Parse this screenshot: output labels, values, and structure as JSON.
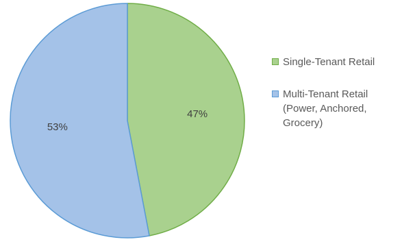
{
  "chart_data": {
    "type": "pie",
    "title": "",
    "slices": [
      {
        "name": "Single-Tenant Retail",
        "value": 47,
        "label": "47%",
        "fill": "#a9d18e",
        "stroke": "#70ad47"
      },
      {
        "name": "Multi-Tenant Retail (Power, Anchored, Grocery)",
        "value": 53,
        "label": "53%",
        "fill": "#a4c2e8",
        "stroke": "#5b9bd5"
      }
    ],
    "legend_position": "right",
    "start_angle": "12 o'clock",
    "direction": "clockwise"
  },
  "legend": {
    "items": [
      {
        "text": "Single-Tenant Retail"
      },
      {
        "text": "Multi-Tenant Retail\n(Power, Anchored,\nGrocery)"
      }
    ]
  }
}
